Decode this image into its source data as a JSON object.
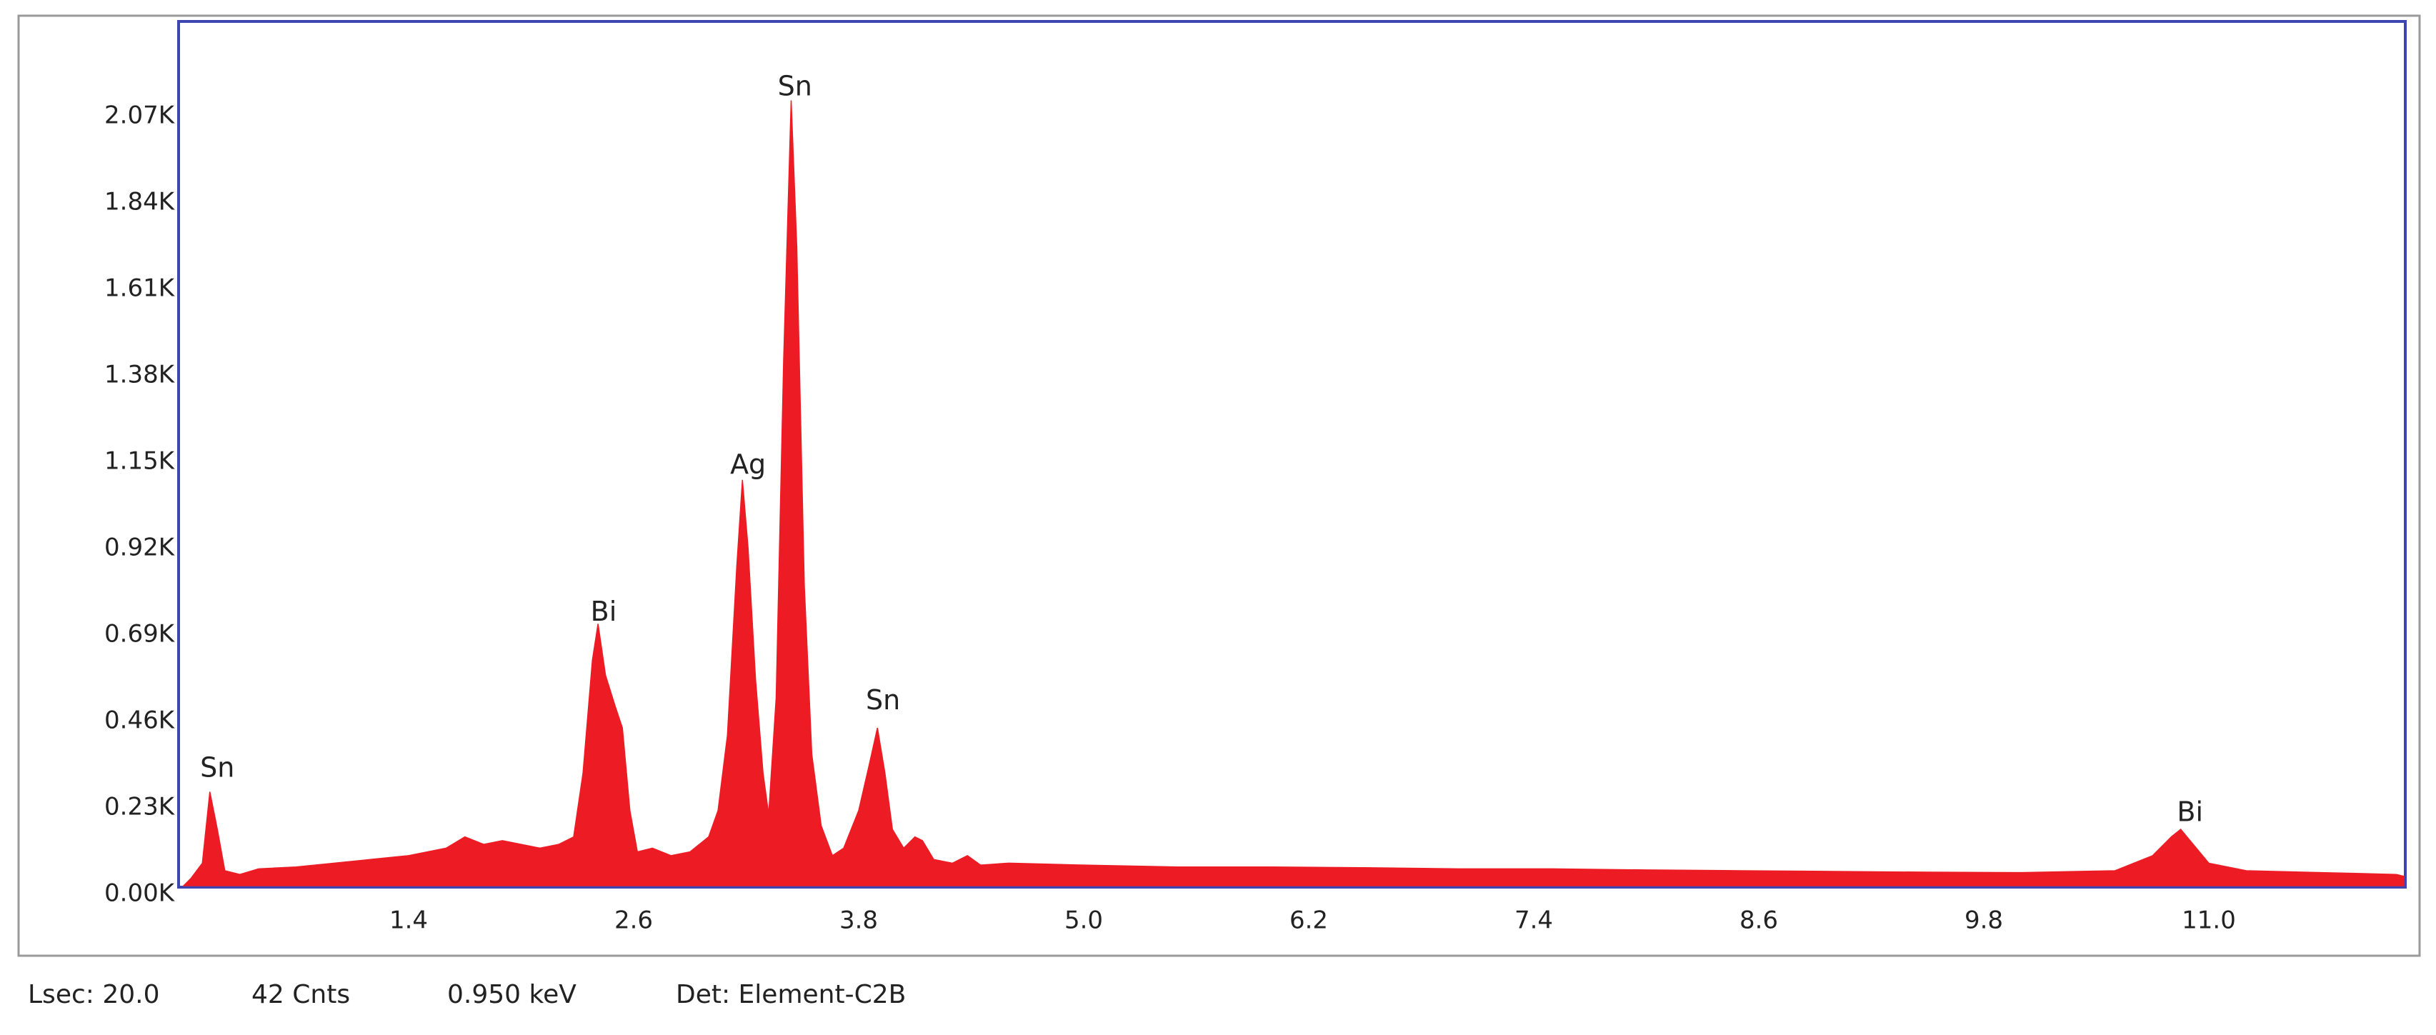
{
  "chart_data": {
    "type": "area",
    "color": "#ed1c24",
    "x": [
      0.2,
      0.24,
      0.3,
      0.34,
      0.38,
      0.42,
      0.5,
      0.6,
      0.8,
      1.0,
      1.2,
      1.4,
      1.6,
      1.7,
      1.8,
      1.9,
      2.0,
      2.1,
      2.2,
      2.28,
      2.33,
      2.38,
      2.41,
      2.45,
      2.5,
      2.54,
      2.58,
      2.62,
      2.7,
      2.8,
      2.9,
      3.0,
      3.05,
      3.1,
      3.15,
      3.18,
      3.21,
      3.25,
      3.29,
      3.32,
      3.36,
      3.4,
      3.44,
      3.47,
      3.51,
      3.55,
      3.6,
      3.66,
      3.72,
      3.8,
      3.86,
      3.9,
      3.94,
      3.98,
      4.04,
      4.1,
      4.14,
      4.2,
      4.3,
      4.38,
      4.45,
      4.6,
      5.0,
      5.5,
      6.0,
      6.5,
      7.0,
      7.5,
      8.0,
      8.5,
      9.0,
      9.5,
      10.0,
      10.5,
      10.7,
      10.8,
      10.85,
      10.9,
      11.0,
      11.2,
      11.6,
      12.0,
      12.04
    ],
    "values": [
      0,
      20,
      60,
      250,
      150,
      40,
      30,
      45,
      50,
      60,
      70,
      80,
      100,
      130,
      110,
      120,
      110,
      100,
      110,
      130,
      300,
      600,
      697,
      560,
      480,
      420,
      200,
      90,
      100,
      80,
      90,
      130,
      200,
      400,
      850,
      1080,
      900,
      550,
      300,
      190,
      500,
      1400,
      2090,
      1700,
      800,
      350,
      160,
      80,
      100,
      200,
      330,
      420,
      300,
      150,
      100,
      130,
      120,
      70,
      60,
      80,
      55,
      60,
      55,
      50,
      50,
      48,
      45,
      45,
      42,
      40,
      38,
      36,
      35,
      40,
      80,
      130,
      150,
      120,
      60,
      40,
      35,
      30,
      25
    ],
    "xlim": [
      0.2,
      12.04
    ],
    "ylim": [
      0,
      2300
    ],
    "xticks": [
      1.4,
      2.6,
      3.8,
      {
        "value": 5,
        "label": "5.0"
      },
      6.2,
      7.4,
      8.6,
      9.8,
      {
        "value": 11,
        "label": "11.0"
      }
    ],
    "yticks": [
      {
        "value": 0,
        "label": "0.00K"
      },
      {
        "value": 230,
        "label": "0.23K"
      },
      {
        "value": 460,
        "label": "0.46K"
      },
      {
        "value": 690,
        "label": "0.69K"
      },
      {
        "value": 920,
        "label": "0.92K"
      },
      {
        "value": 1150,
        "label": "1.15K"
      },
      {
        "value": 1380,
        "label": "1.38K"
      },
      {
        "value": 1610,
        "label": "1.61K"
      },
      {
        "value": 1840,
        "label": "1.84K"
      },
      {
        "value": 2070,
        "label": "2.07K"
      }
    ],
    "annotations": [
      {
        "text": "Sn",
        "x": 0.38,
        "y": 310
      },
      {
        "text": "Bi",
        "x": 2.44,
        "y": 725
      },
      {
        "text": "Ag",
        "x": 3.21,
        "y": 1117
      },
      {
        "text": "Sn",
        "x": 3.46,
        "y": 2123
      },
      {
        "text": "Sn",
        "x": 3.93,
        "y": 489
      },
      {
        "text": "Bi",
        "x": 10.9,
        "y": 192
      }
    ]
  },
  "footer": [
    "Lsec: 20.0",
    "42 Cnts",
    "0.950 keV",
    "Det: Element-C2B"
  ]
}
